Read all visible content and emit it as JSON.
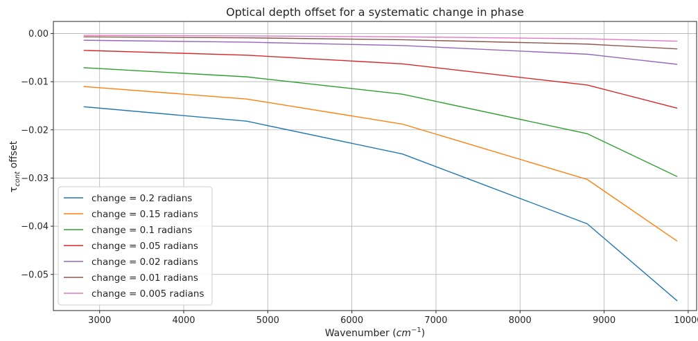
{
  "chart_data": {
    "type": "line",
    "title": "Optical depth offset for a systematic change in phase",
    "xlabel": {
      "main": "Wavenumber (",
      "var": "cm",
      "sup": "−1",
      "close": ")"
    },
    "ylabel": {
      "main": "τ",
      "sub": "cont",
      "rest": " offset"
    },
    "xlim": [
      2450,
      10100
    ],
    "ylim": [
      -0.0575,
      0.0025
    ],
    "xticks": [
      3000,
      4000,
      5000,
      6000,
      7000,
      8000,
      9000,
      10000
    ],
    "xtick_labels": [
      "3000",
      "4000",
      "5000",
      "6000",
      "7000",
      "8000",
      "9000",
      "10000"
    ],
    "yticks": [
      0.0,
      -0.01,
      -0.02,
      -0.03,
      -0.04,
      -0.05
    ],
    "ytick_labels": [
      "0.00",
      "−0.01",
      "−0.02",
      "−0.03",
      "−0.04",
      "−0.05"
    ],
    "grid": true,
    "legend_position": "lower-left",
    "x": [
      2810,
      4750,
      6600,
      8800,
      9870
    ],
    "series": [
      {
        "name": "change = 0.2 radians",
        "color": "#1f77b4",
        "values": [
          -0.0152,
          -0.0182,
          -0.025,
          -0.0395,
          -0.0555
        ]
      },
      {
        "name": "change = 0.15 radians",
        "color": "#ff7f0e",
        "values": [
          -0.011,
          -0.0136,
          -0.0188,
          -0.0303,
          -0.0431
        ]
      },
      {
        "name": "change = 0.1 radians",
        "color": "#2ca02c",
        "values": [
          -0.0071,
          -0.009,
          -0.0126,
          -0.0208,
          -0.0297
        ]
      },
      {
        "name": "change = 0.05 radians",
        "color": "#d62728",
        "values": [
          -0.0035,
          -0.0045,
          -0.0063,
          -0.0107,
          -0.0155
        ]
      },
      {
        "name": "change = 0.02 radians",
        "color": "#9467bd",
        "values": [
          -0.0014,
          -0.0018,
          -0.0025,
          -0.0043,
          -0.0064
        ]
      },
      {
        "name": "change = 0.01 radians",
        "color": "#8c564b",
        "values": [
          -0.0007,
          -0.0009,
          -0.0013,
          -0.0022,
          -0.0032
        ]
      },
      {
        "name": "change = 0.005 radians",
        "color": "#e377c2",
        "values": [
          -0.0004,
          -0.0005,
          -0.0007,
          -0.0011,
          -0.0016
        ]
      }
    ]
  }
}
